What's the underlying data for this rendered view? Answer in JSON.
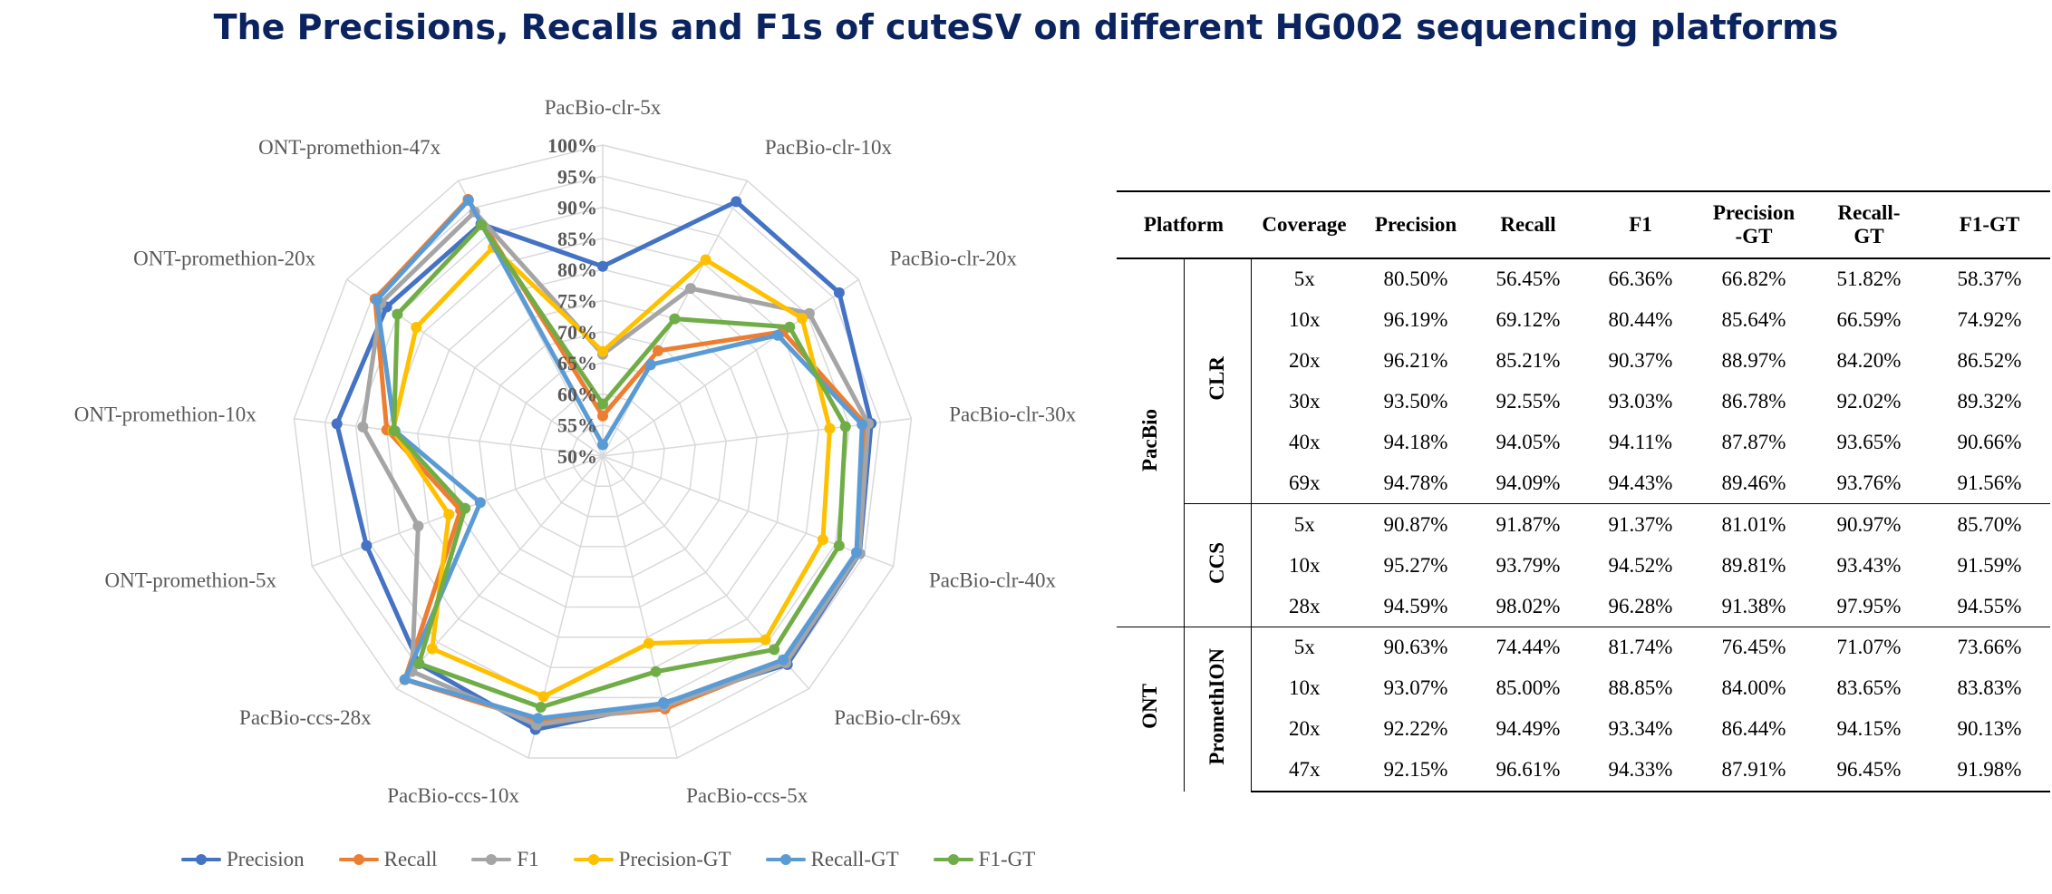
{
  "title": "The Precisions, Recalls and F1s of cuteSV on different HG002 sequencing platforms",
  "chart_data": {
    "type": "radar",
    "axes": [
      "PacBio-clr-5x",
      "PacBio-clr-10x",
      "PacBio-clr-20x",
      "PacBio-clr-30x",
      "PacBio-clr-40x",
      "PacBio-clr-69x",
      "PacBio-ccs-5x",
      "PacBio-ccs-10x",
      "PacBio-ccs-28x",
      "ONT-promethion-5x",
      "ONT-promethion-10x",
      "ONT-promethion-20x",
      "ONT-promethion-47x"
    ],
    "radial_ticks": [
      "50%",
      "55%",
      "60%",
      "65%",
      "70%",
      "75%",
      "80%",
      "85%",
      "90%",
      "95%",
      "100%"
    ],
    "rmin": 50,
    "rmax": 100,
    "grid": true,
    "legend_position": "bottom",
    "series": [
      {
        "name": "Precision",
        "color": "#4472c4",
        "values": [
          80.5,
          96.19,
          96.21,
          93.5,
          94.18,
          94.78,
          90.87,
          95.27,
          94.59,
          90.63,
          93.07,
          92.22,
          92.15
        ]
      },
      {
        "name": "Recall",
        "color": "#ed7d31",
        "values": [
          56.45,
          69.12,
          85.21,
          92.55,
          94.05,
          94.09,
          91.87,
          93.79,
          98.02,
          74.44,
          85.0,
          94.49,
          96.61
        ]
      },
      {
        "name": "F1",
        "color": "#a5a5a5",
        "values": [
          66.36,
          80.44,
          90.37,
          93.03,
          94.11,
          94.43,
          91.37,
          94.52,
          96.28,
          81.74,
          88.85,
          93.34,
          94.33
        ]
      },
      {
        "name": "Precision-GT",
        "color": "#ffc000",
        "values": [
          66.82,
          85.64,
          88.97,
          86.78,
          87.87,
          89.46,
          81.01,
          89.81,
          91.38,
          76.45,
          84.0,
          86.44,
          87.91
        ]
      },
      {
        "name": "Recall-GT",
        "color": "#5b9bd5",
        "values": [
          51.82,
          66.59,
          84.2,
          92.02,
          93.65,
          93.76,
          90.97,
          93.43,
          97.95,
          71.07,
          83.65,
          94.15,
          96.45
        ]
      },
      {
        "name": "F1-GT",
        "color": "#70ad47",
        "values": [
          58.37,
          74.92,
          86.52,
          89.32,
          90.66,
          91.56,
          85.7,
          91.59,
          94.55,
          73.66,
          83.83,
          90.13,
          91.98
        ]
      }
    ]
  },
  "table": {
    "headers": [
      "Platform",
      "Coverage",
      "Precision",
      "Recall",
      "F1",
      "Precision -GT",
      "Recall- GT",
      "F1-GT"
    ],
    "groups": [
      {
        "platform": "PacBio",
        "subgroups": [
          {
            "name": "CLR",
            "rows": [
              [
                "5x",
                "80.50%",
                "56.45%",
                "66.36%",
                "66.82%",
                "51.82%",
                "58.37%"
              ],
              [
                "10x",
                "96.19%",
                "69.12%",
                "80.44%",
                "85.64%",
                "66.59%",
                "74.92%"
              ],
              [
                "20x",
                "96.21%",
                "85.21%",
                "90.37%",
                "88.97%",
                "84.20%",
                "86.52%"
              ],
              [
                "30x",
                "93.50%",
                "92.55%",
                "93.03%",
                "86.78%",
                "92.02%",
                "89.32%"
              ],
              [
                "40x",
                "94.18%",
                "94.05%",
                "94.11%",
                "87.87%",
                "93.65%",
                "90.66%"
              ],
              [
                "69x",
                "94.78%",
                "94.09%",
                "94.43%",
                "89.46%",
                "93.76%",
                "91.56%"
              ]
            ]
          },
          {
            "name": "CCS",
            "rows": [
              [
                "5x",
                "90.87%",
                "91.87%",
                "91.37%",
                "81.01%",
                "90.97%",
                "85.70%"
              ],
              [
                "10x",
                "95.27%",
                "93.79%",
                "94.52%",
                "89.81%",
                "93.43%",
                "91.59%"
              ],
              [
                "28x",
                "94.59%",
                "98.02%",
                "96.28%",
                "91.38%",
                "97.95%",
                "94.55%"
              ]
            ]
          }
        ]
      },
      {
        "platform": "ONT",
        "subgroups": [
          {
            "name": "PromethION",
            "rows": [
              [
                "5x",
                "90.63%",
                "74.44%",
                "81.74%",
                "76.45%",
                "71.07%",
                "73.66%"
              ],
              [
                "10x",
                "93.07%",
                "85.00%",
                "88.85%",
                "84.00%",
                "83.65%",
                "83.83%"
              ],
              [
                "20x",
                "92.22%",
                "94.49%",
                "93.34%",
                "86.44%",
                "94.15%",
                "90.13%"
              ],
              [
                "47x",
                "92.15%",
                "96.61%",
                "94.33%",
                "87.91%",
                "96.45%",
                "91.98%"
              ]
            ]
          }
        ]
      }
    ]
  }
}
